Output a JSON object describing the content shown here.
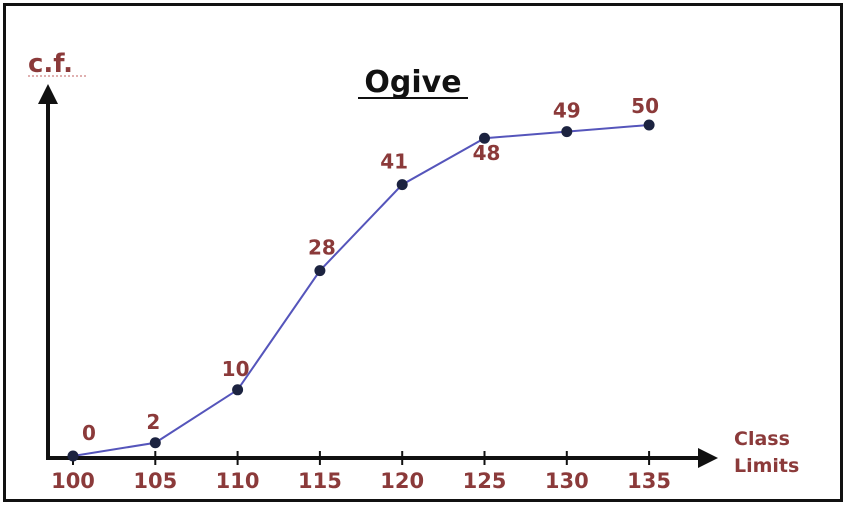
{
  "chart_data": {
    "type": "line",
    "title": "Ogive",
    "ylabel": "c.f.",
    "xlabel_line1": "Class",
    "xlabel_line2": "Limits",
    "categories": [
      100,
      105,
      110,
      115,
      120,
      125,
      130,
      135
    ],
    "x": [
      100,
      105,
      110,
      115,
      120,
      125,
      130,
      135
    ],
    "values": [
      0,
      2,
      10,
      28,
      41,
      48,
      49,
      50
    ],
    "ylim": [
      0,
      50
    ],
    "grid": false,
    "legend": "none",
    "colors": {
      "line": "#5555bb",
      "marker": "#1c2340",
      "label": "#8b3a3a",
      "axis": "#111111",
      "title": "#111111"
    }
  }
}
